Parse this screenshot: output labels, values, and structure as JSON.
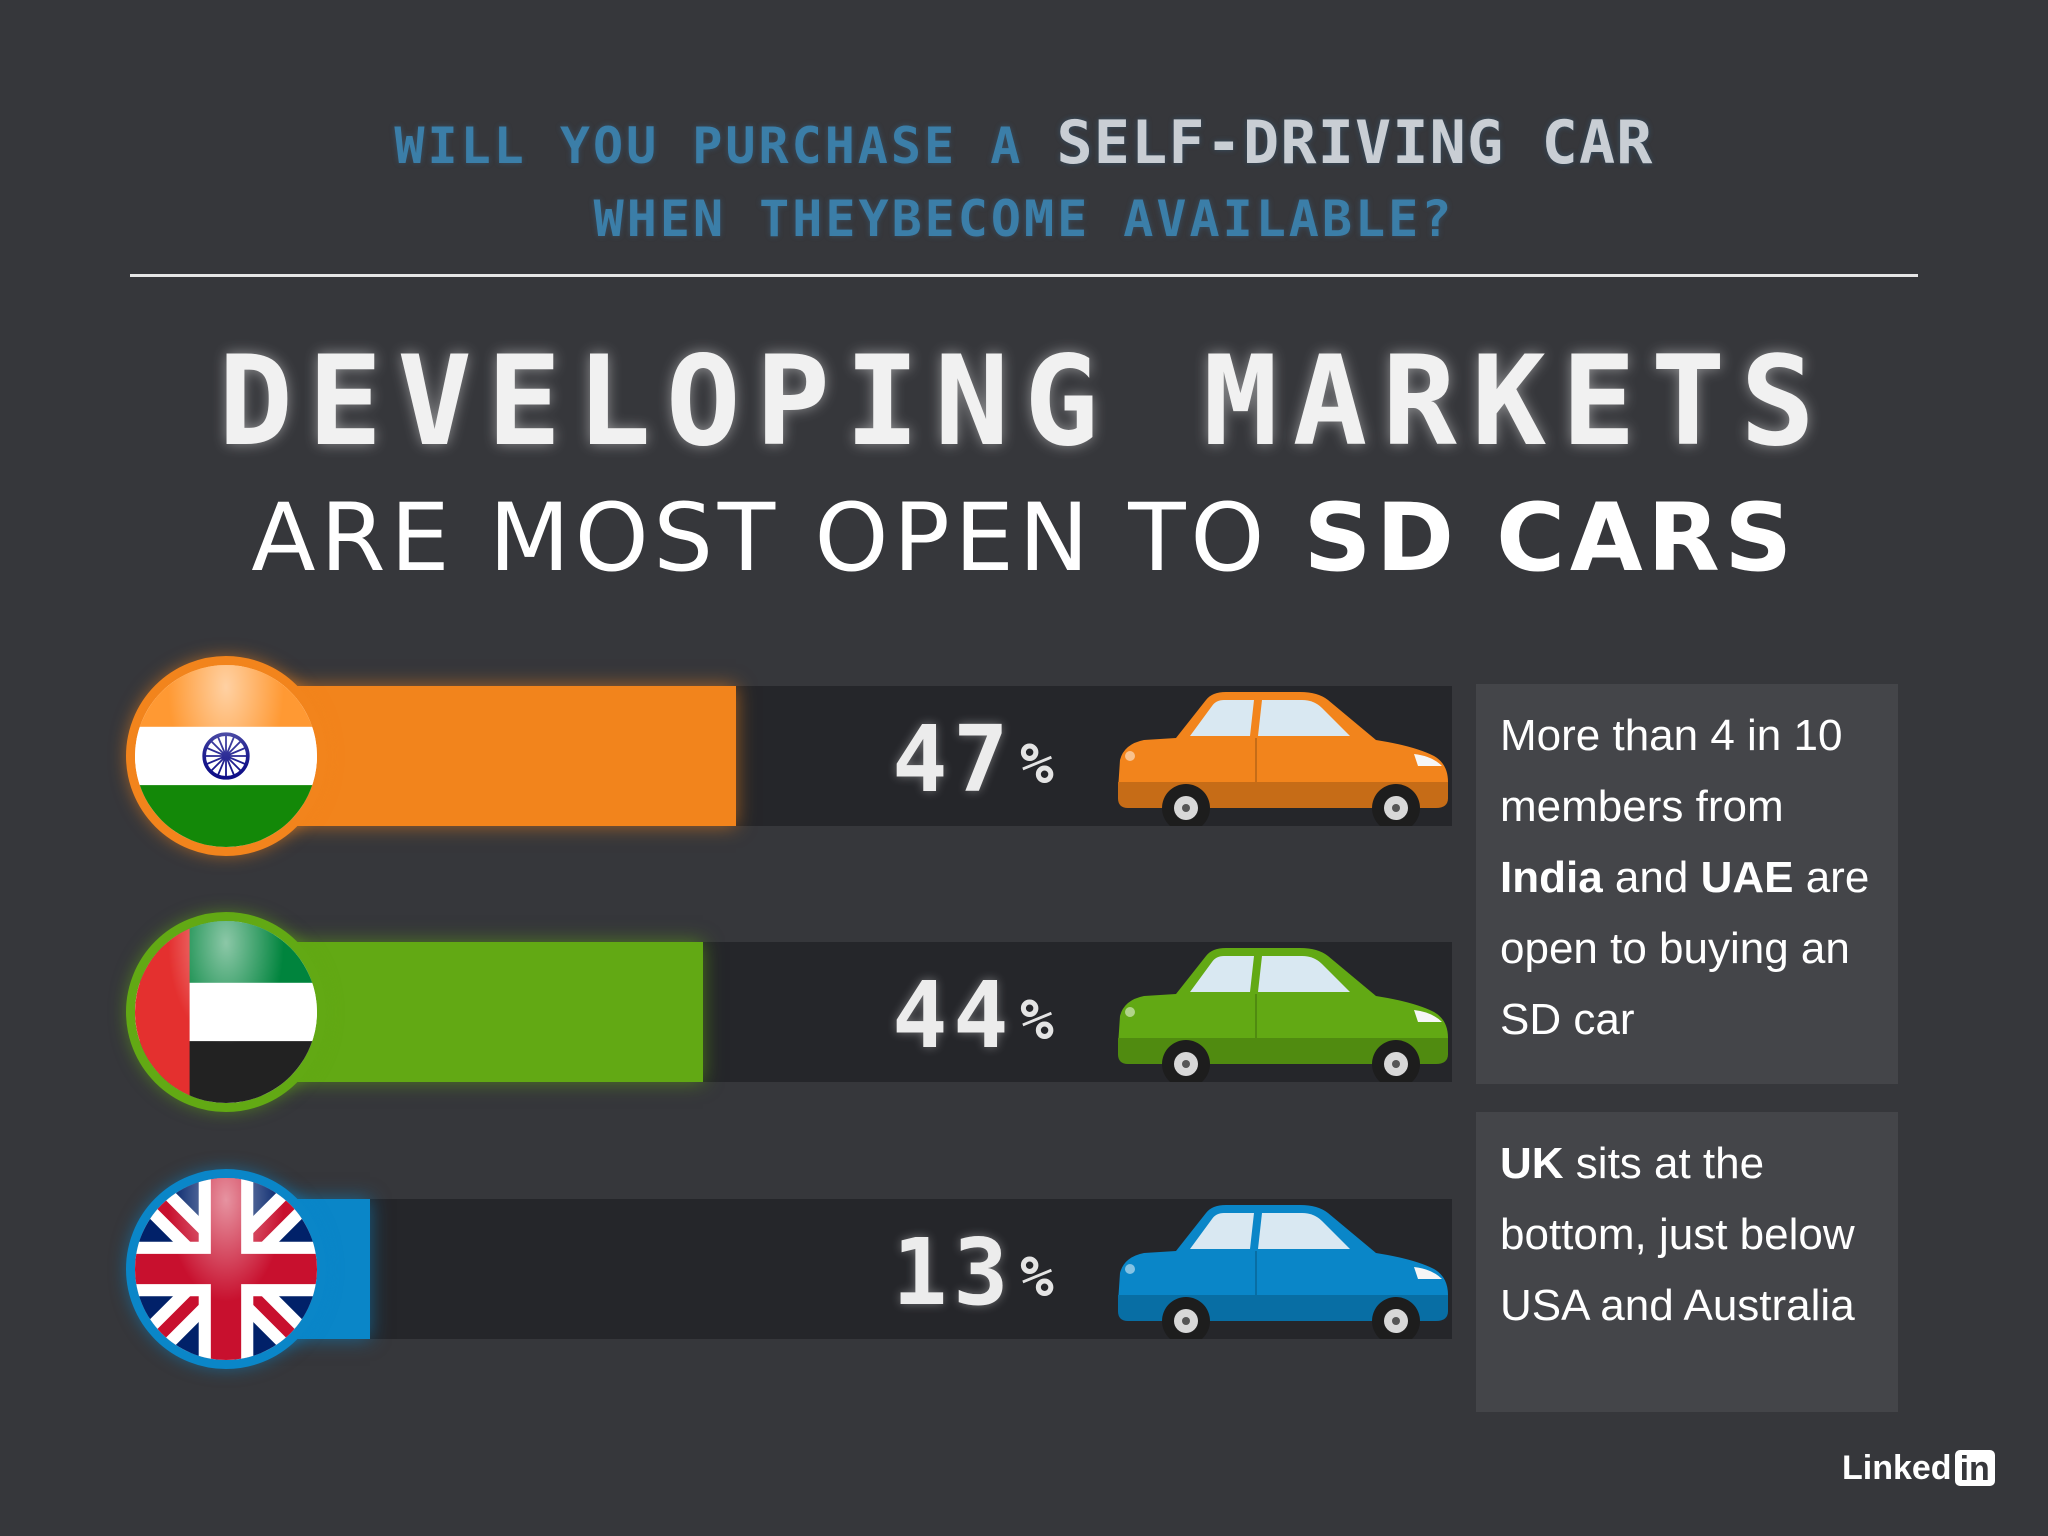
{
  "question": {
    "line1_prefix": "WILL YOU PURCHASE A",
    "line1_highlight": "SELF-DRIVING CAR",
    "line2": "WHEN THEYBECOME AVAILABLE?"
  },
  "headline": {
    "line1": "DEVELOPING MARKETS",
    "line2_prefix": "ARE MOST OPEN TO",
    "line2_bold": "SD CARS"
  },
  "chart_data": {
    "type": "bar",
    "orientation": "horizontal",
    "categories": [
      "India",
      "UAE",
      "UK"
    ],
    "values": [
      47,
      44,
      13
    ],
    "value_labels": [
      "47",
      "44",
      "13"
    ],
    "unit": "%",
    "colors": [
      "#f2841c",
      "#62a914",
      "#0a86c8"
    ],
    "xlim": [
      0,
      100
    ]
  },
  "flags": [
    "india-flag-icon",
    "uae-flag-icon",
    "uk-flag-icon"
  ],
  "notes": {
    "note1": {
      "t1": "More than 4 in 10 members from ",
      "b1": "India",
      "t2": " and ",
      "b2": "UAE",
      "t3": " are open to buying an SD car"
    },
    "note2": {
      "b1": "UK",
      "t1": " sits at the bottom, just below USA and Australia"
    }
  },
  "brand": {
    "name_text": "Linked",
    "name_box": "in"
  }
}
